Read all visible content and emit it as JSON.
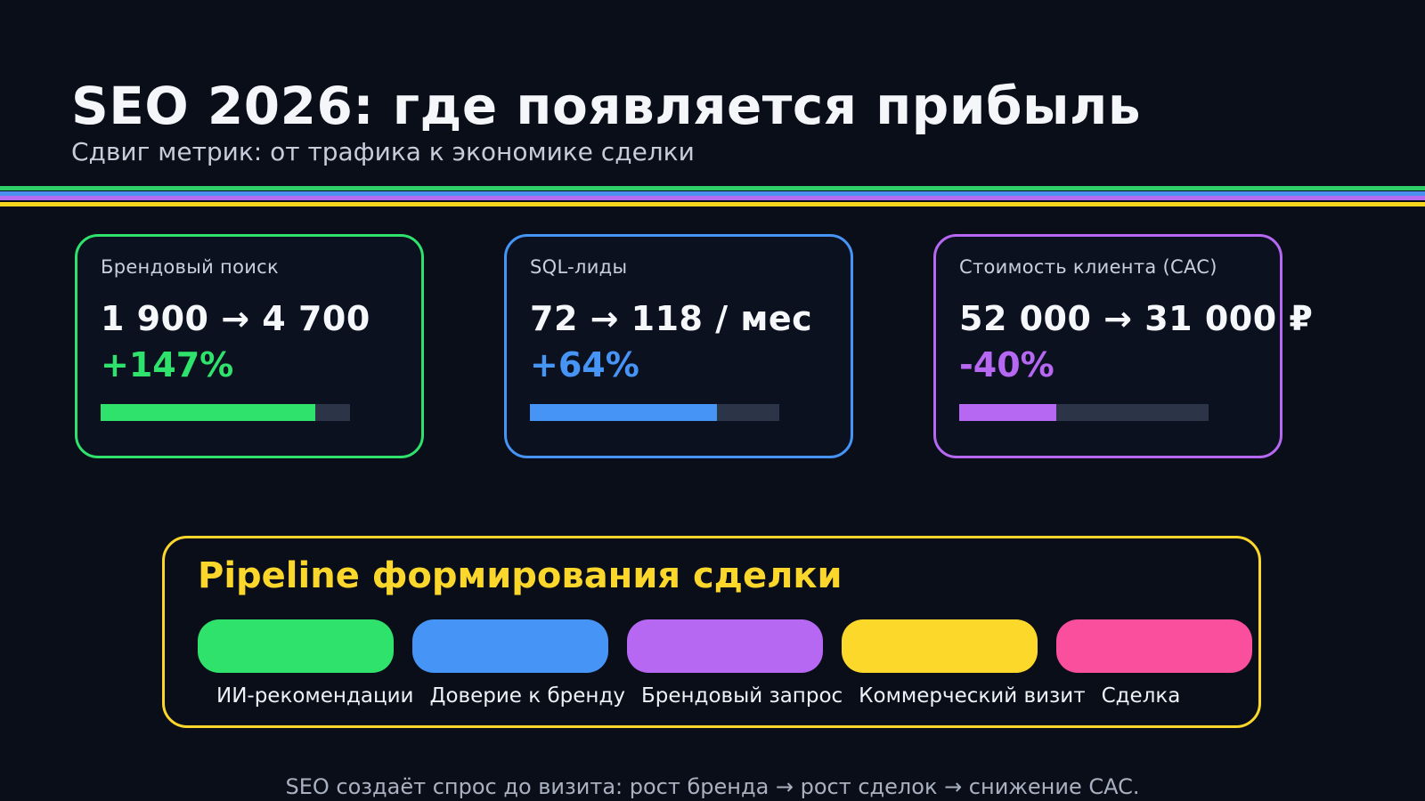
{
  "header": {
    "title": "SEO 2026: где появляется прибыль",
    "subtitle": "Сдвиг метрик: от трафика к экономике сделки"
  },
  "divider": {
    "stripe_colors": [
      "#2ecf68",
      "#4a90f0",
      "#b46cf0",
      "#f6d51f"
    ]
  },
  "cards": [
    {
      "label": "Брендовый поиск",
      "value": "1 900 → 4 700",
      "delta": "+147%",
      "progress_pct": 86,
      "accent": "#2ee26c"
    },
    {
      "label": "SQL-лиды",
      "value": "72 → 118 / мес",
      "delta": "+64%",
      "progress_pct": 75,
      "accent": "#4695f6"
    },
    {
      "label": "Стоимость клиента (CAC)",
      "value": "52 000 → 31 000 ₽",
      "delta": "-40%",
      "progress_pct": 39,
      "accent": "#b768f3"
    }
  ],
  "pipeline": {
    "title": "Pipeline формирования сделки",
    "accent": "#fcd72b",
    "stages": [
      {
        "label": "ИИ-рекомендации",
        "color": "#2ee26c"
      },
      {
        "label": "Доверие к бренду",
        "color": "#4695f6"
      },
      {
        "label": "Брендовый запрос",
        "color": "#b768f3"
      },
      {
        "label": "Коммерческий визит",
        "color": "#fcd82a"
      },
      {
        "label": "Сделка",
        "color": "#fa4f9c"
      }
    ]
  },
  "footer": {
    "note": "SEO создаёт спрос до визита: рост бренда → рост сделок → снижение CAC."
  }
}
